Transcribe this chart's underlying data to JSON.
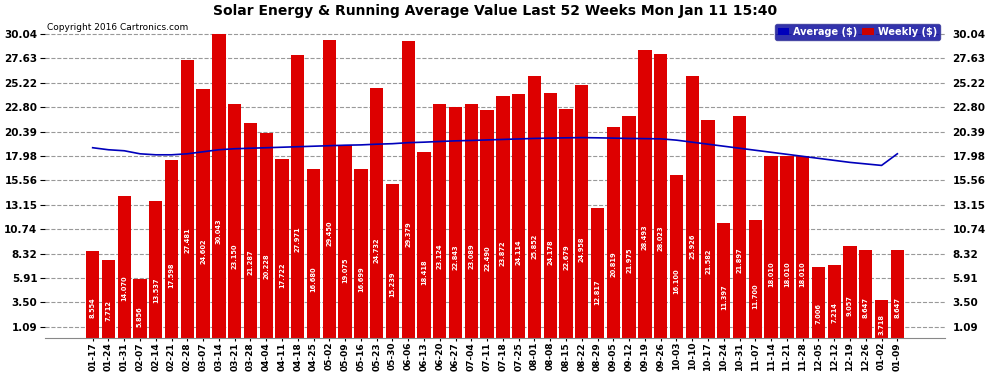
{
  "title": "Solar Energy & Running Average Value Last 52 Weeks Mon Jan 11 15:40",
  "copyright": "Copyright 2016 Cartronics.com",
  "legend_labels": [
    "Average ($)",
    "Weekly ($)"
  ],
  "legend_colors": [
    "#0000bb",
    "#cc0000"
  ],
  "bar_color": "#dd0000",
  "avg_line_color": "#0000bb",
  "background_color": "#ffffff",
  "plot_bg_color": "#ffffff",
  "grid_color": "#999999",
  "yticks": [
    1.09,
    3.5,
    5.91,
    8.32,
    10.74,
    13.15,
    15.56,
    17.98,
    20.39,
    22.8,
    25.22,
    27.63,
    30.04
  ],
  "dates": [
    "01-17",
    "01-24",
    "01-31",
    "02-07",
    "02-14",
    "02-21",
    "02-28",
    "03-07",
    "03-14",
    "03-21",
    "03-28",
    "04-04",
    "04-11",
    "04-18",
    "04-25",
    "05-02",
    "05-09",
    "05-16",
    "05-23",
    "05-30",
    "06-06",
    "06-13",
    "06-20",
    "06-27",
    "07-04",
    "07-11",
    "07-18",
    "07-25",
    "08-01",
    "08-08",
    "08-15",
    "08-22",
    "08-29",
    "09-05",
    "09-12",
    "09-19",
    "09-26",
    "10-03",
    "10-10",
    "10-17",
    "10-24",
    "10-31",
    "11-07",
    "11-14",
    "11-21",
    "11-28",
    "12-05",
    "12-12",
    "12-19",
    "12-26",
    "01-02",
    "01-09"
  ],
  "weekly_values": [
    8.554,
    7.712,
    14.07,
    5.856,
    13.537,
    17.598,
    27.481,
    24.602,
    30.043,
    23.15,
    21.287,
    20.228,
    17.722,
    27.971,
    16.68,
    29.45,
    19.075,
    16.699,
    24.732,
    15.239,
    29.379,
    18.418,
    23.124,
    22.843,
    23.089,
    22.49,
    23.872,
    24.114,
    25.852,
    24.178,
    22.679,
    24.958,
    12.817,
    20.819,
    21.975,
    28.493,
    28.023,
    16.1,
    25.926,
    21.582,
    11.397,
    21.897,
    11.7,
    18.01,
    18.01,
    18.01,
    7.006,
    7.214,
    9.057,
    8.647,
    3.718,
    8.647
  ],
  "avg_values": [
    18.8,
    18.6,
    18.5,
    18.2,
    18.1,
    18.1,
    18.2,
    18.4,
    18.6,
    18.7,
    18.75,
    18.8,
    18.85,
    18.9,
    18.95,
    19.0,
    19.05,
    19.08,
    19.15,
    19.2,
    19.3,
    19.35,
    19.42,
    19.48,
    19.52,
    19.57,
    19.62,
    19.67,
    19.72,
    19.75,
    19.78,
    19.8,
    19.78,
    19.75,
    19.72,
    19.7,
    19.68,
    19.55,
    19.35,
    19.15,
    18.95,
    18.75,
    18.55,
    18.35,
    18.15,
    17.95,
    17.75,
    17.55,
    17.35,
    17.2,
    17.05,
    18.2
  ]
}
